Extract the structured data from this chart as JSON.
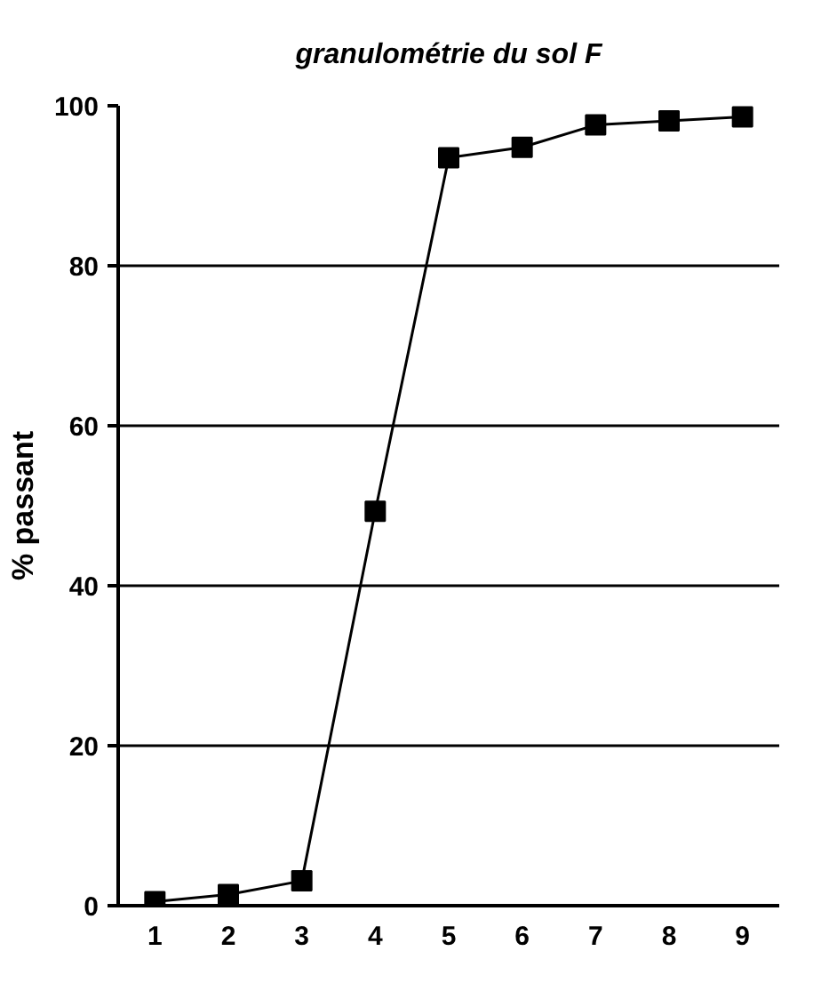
{
  "chart_data": {
    "type": "line",
    "title": "granulométrie du sol F",
    "ylabel": "% passant",
    "categories": [
      "1",
      "2",
      "3",
      "4",
      "5",
      "6",
      "7",
      "8",
      "9"
    ],
    "series": [
      {
        "color": "#000000",
        "values": [
          0.5,
          1.4,
          3.1,
          49.3,
          93.5,
          94.8,
          97.6,
          98.1,
          98.6
        ]
      }
    ],
    "ylim": [
      0,
      100
    ],
    "yticks": [
      0,
      20,
      40,
      60,
      80,
      100
    ],
    "grid": "y",
    "marker": "square"
  }
}
